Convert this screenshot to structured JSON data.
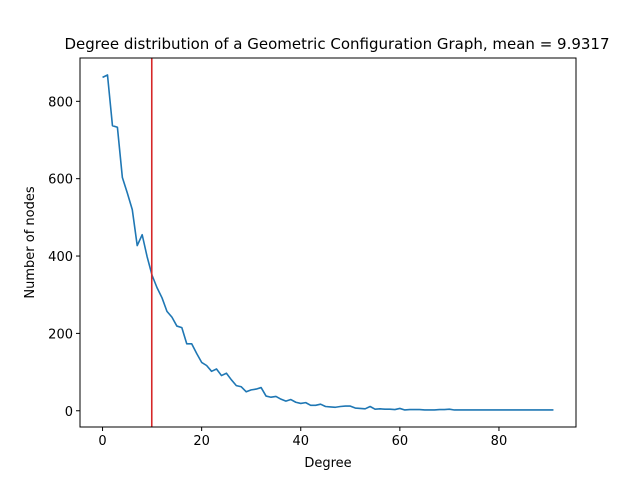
{
  "chart_data": {
    "type": "line",
    "title": "Degree distribution of a Geometric Configuration Graph, mean = 9.9317",
    "xlabel": "Degree",
    "ylabel": "Number of nodes",
    "xlim": [
      -4.55,
      95.55
    ],
    "ylim": [
      -42,
      912
    ],
    "xticks": [
      0,
      20,
      40,
      60,
      80
    ],
    "yticks": [
      0,
      200,
      400,
      600,
      800
    ],
    "grid": false,
    "series": [
      {
        "color": "#1f77b4",
        "x": [
          0,
          1,
          2,
          3,
          4,
          5,
          6,
          7,
          8,
          9,
          10,
          11,
          12,
          13,
          14,
          15,
          16,
          17,
          18,
          19,
          20,
          21,
          22,
          23,
          24,
          25,
          26,
          27,
          28,
          29,
          30,
          31,
          32,
          33,
          34,
          35,
          36,
          37,
          38,
          39,
          40,
          41,
          42,
          43,
          44,
          45,
          46,
          47,
          48,
          49,
          50,
          51,
          52,
          53,
          54,
          55,
          56,
          57,
          58,
          59,
          60,
          61,
          62,
          63,
          64,
          65,
          66,
          67,
          68,
          69,
          70,
          71,
          72,
          73,
          74,
          75,
          76,
          77,
          78,
          79,
          80,
          81,
          82,
          83,
          84,
          85,
          86,
          87,
          88,
          89,
          90,
          91
        ],
        "y": [
          862,
          868,
          737,
          733,
          603,
          563,
          520,
          427,
          455,
          398,
          350,
          318,
          292,
          257,
          242,
          219,
          215,
          173,
          173,
          148,
          125,
          117,
          102,
          108,
          91,
          97,
          80,
          65,
          62,
          49,
          54,
          56,
          60,
          38,
          35,
          37,
          30,
          25,
          29,
          22,
          19,
          21,
          14,
          14,
          17,
          11,
          10,
          9,
          11,
          12,
          12,
          7,
          6,
          5,
          11,
          4,
          5,
          4,
          4,
          3,
          6,
          2,
          3,
          3,
          3,
          2,
          2,
          2,
          3,
          3,
          4,
          2,
          2,
          2,
          2,
          2,
          2,
          2,
          2,
          2,
          2,
          2,
          2,
          2,
          2,
          2,
          2,
          2,
          2,
          2,
          2,
          2
        ]
      }
    ],
    "vline": {
      "x": 9.9317,
      "color": "#d62728"
    }
  }
}
